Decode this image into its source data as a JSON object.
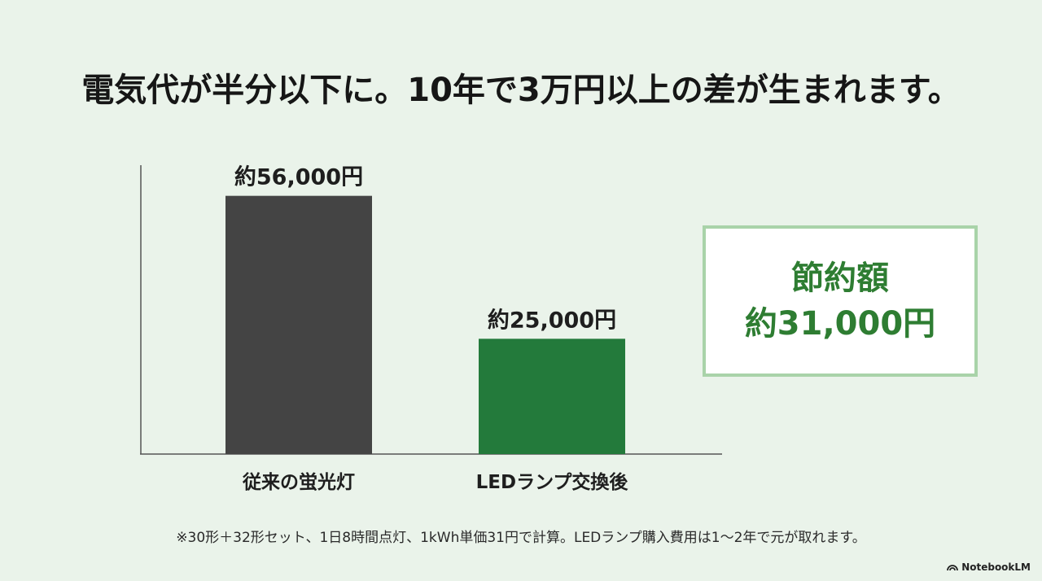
{
  "title": "電気代が半分以下に。10年で3万円以上の差が生まれます。",
  "chart_data": {
    "type": "bar",
    "categories": [
      "従来の蛍光灯",
      "LEDランプ交換後"
    ],
    "values": [
      56000,
      25000
    ],
    "value_labels": [
      "約56,000円",
      "約25,000円"
    ],
    "colors": [
      "#444444",
      "#237a3b"
    ],
    "ylim": [
      0,
      60000
    ],
    "grid": false
  },
  "savings": {
    "label": "節約額",
    "value": "約31,000円"
  },
  "footnote": "※30形＋32形セット、1日8時間点灯、1kWh単価31円で計算。LEDランプ購入費用は1〜2年で元が取れます。",
  "brand": {
    "name": "NotebookLM",
    "icon": "notebooklm-logo-icon"
  }
}
